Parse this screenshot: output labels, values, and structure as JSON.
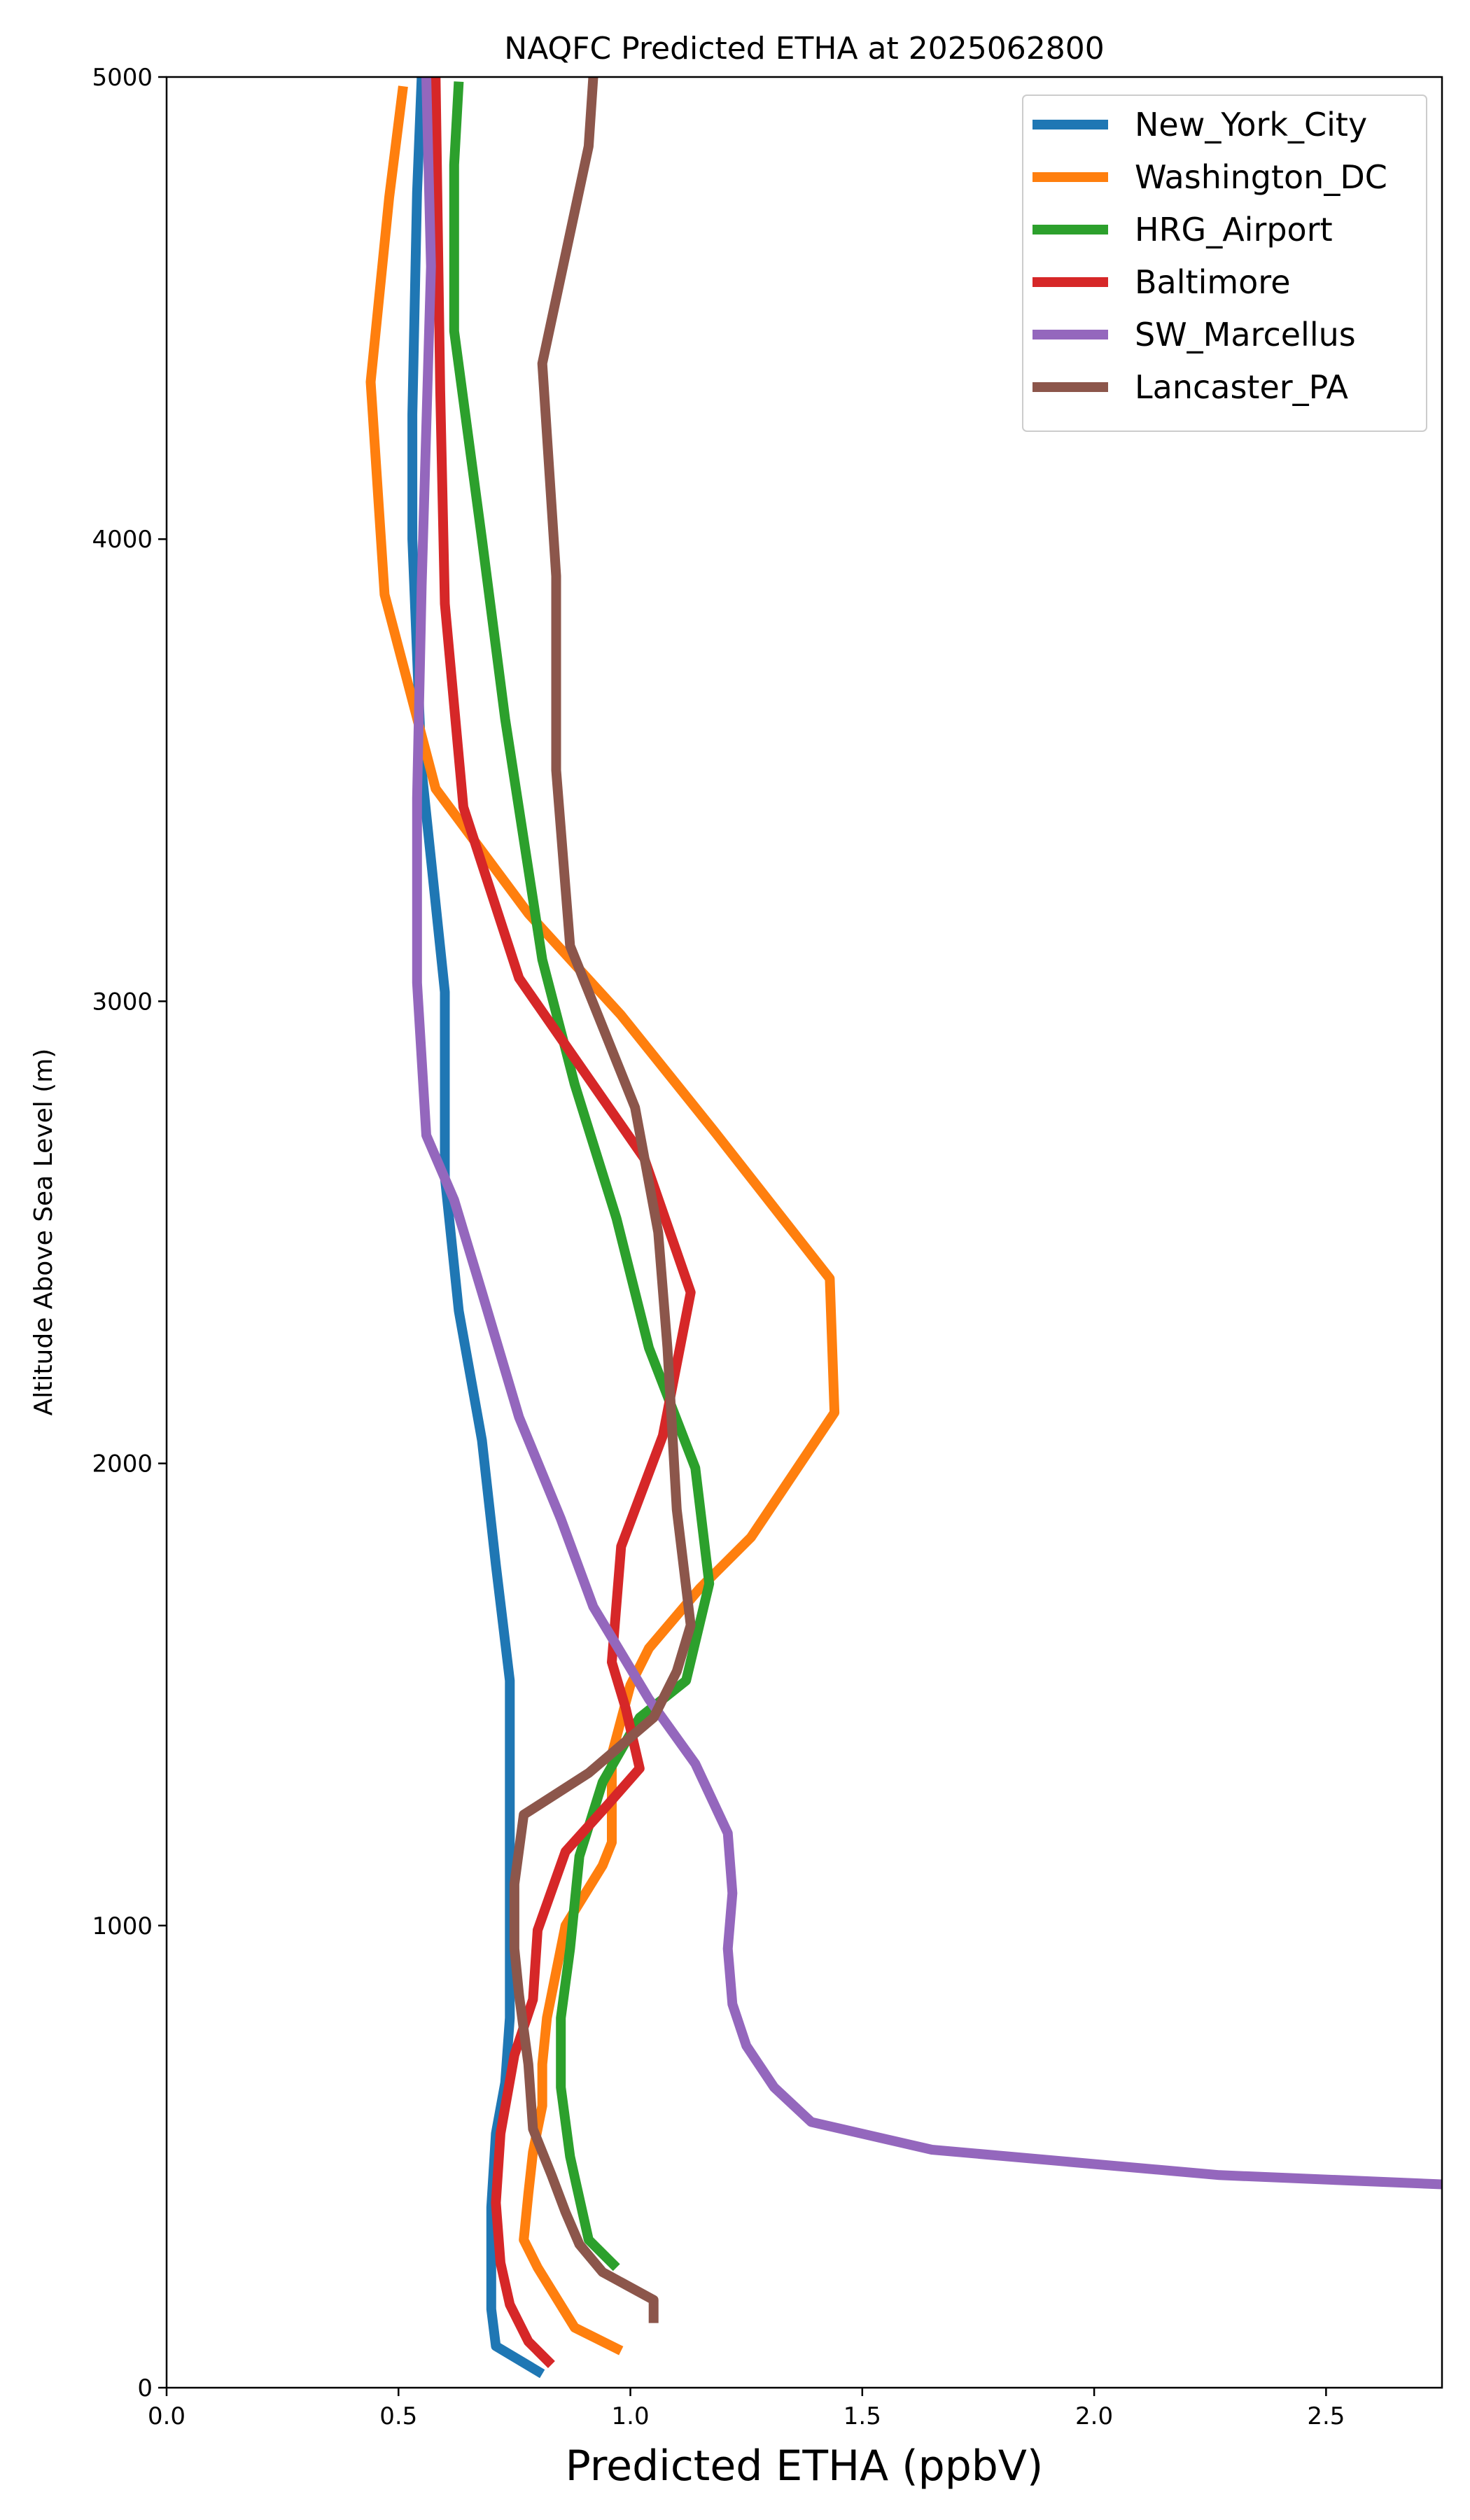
{
  "chart_data": {
    "type": "line",
    "title": "NAQFC Predicted ETHA at 2025062800",
    "xlabel": "Predicted ETHA (ppbV)",
    "ylabel": "Altitude Above Sea Level (m)",
    "xlim": [
      0,
      2.75
    ],
    "ylim": [
      0,
      5000
    ],
    "xticks": [
      0.0,
      0.5,
      1.0,
      1.5,
      2.0,
      2.5
    ],
    "xtick_labels": [
      "0.0",
      "0.5",
      "1.0",
      "1.5",
      "2.0",
      "2.5"
    ],
    "yticks": [
      0,
      1000,
      2000,
      3000,
      4000,
      5000
    ],
    "ytick_labels": [
      "0",
      "1000",
      "2000",
      "3000",
      "4000",
      "5000"
    ],
    "grid": false,
    "legend_position": "top-right",
    "series": [
      {
        "name": "New_York_City",
        "color": "#1f77b4",
        "points": [
          [
            0.81,
            30
          ],
          [
            0.71,
            90
          ],
          [
            0.7,
            170
          ],
          [
            0.7,
            270
          ],
          [
            0.7,
            390
          ],
          [
            0.71,
            550
          ],
          [
            0.73,
            660
          ],
          [
            0.74,
            800
          ],
          [
            0.74,
            900
          ],
          [
            0.74,
            1050
          ],
          [
            0.74,
            1300
          ],
          [
            0.74,
            1530
          ],
          [
            0.71,
            1780
          ],
          [
            0.68,
            2050
          ],
          [
            0.63,
            2330
          ],
          [
            0.6,
            2620
          ],
          [
            0.6,
            3020
          ],
          [
            0.55,
            3500
          ],
          [
            0.53,
            4000
          ],
          [
            0.53,
            4270
          ],
          [
            0.54,
            4750
          ],
          [
            0.55,
            5000
          ]
        ]
      },
      {
        "name": "Washington_DC",
        "color": "#ff7f0e",
        "points": [
          [
            0.98,
            80
          ],
          [
            0.88,
            130
          ],
          [
            0.8,
            260
          ],
          [
            0.77,
            320
          ],
          [
            0.78,
            420
          ],
          [
            0.79,
            510
          ],
          [
            0.8,
            560
          ],
          [
            0.81,
            610
          ],
          [
            0.81,
            700
          ],
          [
            0.82,
            800
          ],
          [
            0.84,
            900
          ],
          [
            0.86,
            1000
          ],
          [
            0.94,
            1130
          ],
          [
            0.96,
            1180
          ],
          [
            0.96,
            1370
          ],
          [
            1.0,
            1520
          ],
          [
            1.04,
            1600
          ],
          [
            1.15,
            1730
          ],
          [
            1.26,
            1840
          ],
          [
            1.44,
            2110
          ],
          [
            1.43,
            2400
          ],
          [
            1.18,
            2720
          ],
          [
            0.98,
            2970
          ],
          [
            0.78,
            3190
          ],
          [
            0.58,
            3460
          ],
          [
            0.47,
            3880
          ],
          [
            0.44,
            4340
          ],
          [
            0.48,
            4740
          ],
          [
            0.51,
            4980
          ]
        ]
      },
      {
        "name": "HRG_Airport",
        "color": "#2ca02c",
        "points": [
          [
            0.97,
            260
          ],
          [
            0.91,
            320
          ],
          [
            0.87,
            500
          ],
          [
            0.85,
            650
          ],
          [
            0.85,
            800
          ],
          [
            0.87,
            950
          ],
          [
            0.89,
            1150
          ],
          [
            0.94,
            1310
          ],
          [
            1.02,
            1450
          ],
          [
            1.12,
            1530
          ],
          [
            1.17,
            1740
          ],
          [
            1.14,
            1990
          ],
          [
            1.04,
            2250
          ],
          [
            0.97,
            2530
          ],
          [
            0.88,
            2820
          ],
          [
            0.81,
            3090
          ],
          [
            0.73,
            3610
          ],
          [
            0.68,
            4000
          ],
          [
            0.62,
            4450
          ],
          [
            0.62,
            4810
          ],
          [
            0.63,
            4990
          ]
        ]
      },
      {
        "name": "Baltimore",
        "color": "#d62728",
        "points": [
          [
            0.83,
            50
          ],
          [
            0.78,
            100
          ],
          [
            0.74,
            180
          ],
          [
            0.72,
            270
          ],
          [
            0.71,
            400
          ],
          [
            0.72,
            550
          ],
          [
            0.75,
            720
          ],
          [
            0.79,
            840
          ],
          [
            0.8,
            990
          ],
          [
            0.86,
            1160
          ],
          [
            0.95,
            1260
          ],
          [
            1.02,
            1340
          ],
          [
            0.99,
            1470
          ],
          [
            0.96,
            1570
          ],
          [
            0.98,
            1820
          ],
          [
            1.07,
            2060
          ],
          [
            1.13,
            2370
          ],
          [
            1.03,
            2660
          ],
          [
            0.76,
            3050
          ],
          [
            0.64,
            3420
          ],
          [
            0.6,
            3860
          ],
          [
            0.59,
            4320
          ],
          [
            0.58,
            5000
          ]
        ]
      },
      {
        "name": "SW_Marcellus",
        "color": "#9467bd",
        "points": [
          [
            2.75,
            440
          ],
          [
            2.27,
            460
          ],
          [
            1.65,
            515
          ],
          [
            1.39,
            575
          ],
          [
            1.31,
            650
          ],
          [
            1.25,
            740
          ],
          [
            1.22,
            830
          ],
          [
            1.21,
            950
          ],
          [
            1.22,
            1070
          ],
          [
            1.21,
            1200
          ],
          [
            1.14,
            1350
          ],
          [
            1.04,
            1490
          ],
          [
            0.92,
            1690
          ],
          [
            0.85,
            1880
          ],
          [
            0.76,
            2100
          ],
          [
            0.68,
            2370
          ],
          [
            0.62,
            2570
          ],
          [
            0.56,
            2710
          ],
          [
            0.54,
            3040
          ],
          [
            0.54,
            3440
          ],
          [
            0.55,
            3900
          ],
          [
            0.57,
            4590
          ],
          [
            0.56,
            5000
          ]
        ]
      },
      {
        "name": "Lancaster_PA",
        "color": "#8c564b",
        "points": [
          [
            1.05,
            140
          ],
          [
            1.05,
            190
          ],
          [
            0.94,
            250
          ],
          [
            0.89,
            310
          ],
          [
            0.86,
            380
          ],
          [
            0.83,
            460
          ],
          [
            0.79,
            560
          ],
          [
            0.78,
            700
          ],
          [
            0.76,
            850
          ],
          [
            0.75,
            950
          ],
          [
            0.75,
            1090
          ],
          [
            0.77,
            1240
          ],
          [
            0.91,
            1330
          ],
          [
            1.05,
            1450
          ],
          [
            1.1,
            1550
          ],
          [
            1.13,
            1650
          ],
          [
            1.1,
            1900
          ],
          [
            1.08,
            2250
          ],
          [
            1.06,
            2500
          ],
          [
            1.01,
            2770
          ],
          [
            0.93,
            2970
          ],
          [
            0.87,
            3120
          ],
          [
            0.84,
            3500
          ],
          [
            0.84,
            3920
          ],
          [
            0.81,
            4380
          ],
          [
            0.91,
            4850
          ],
          [
            0.92,
            5000
          ]
        ]
      }
    ]
  }
}
